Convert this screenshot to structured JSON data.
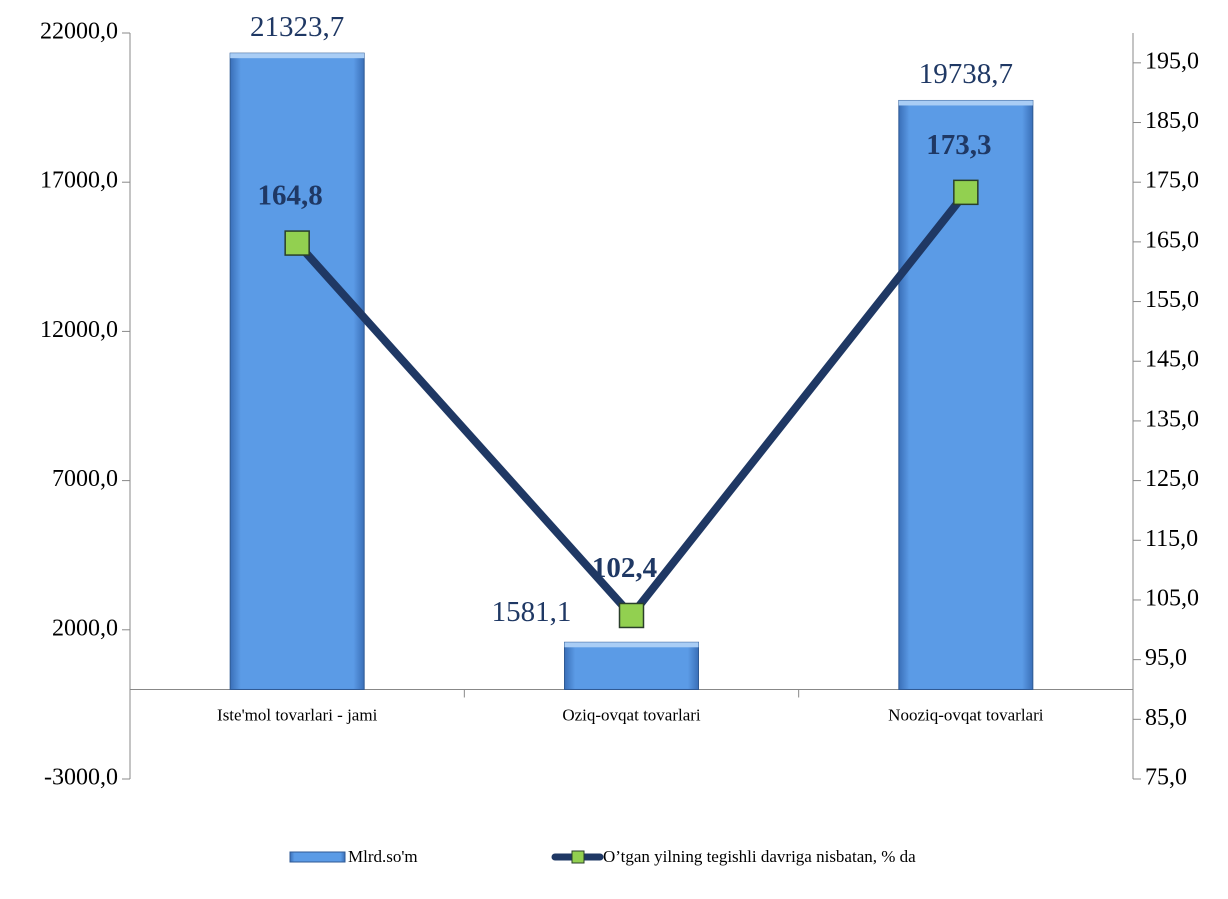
{
  "chart_data": {
    "type": "bar",
    "categories": [
      "Iste'mol tovarlari - jami",
      "Oziq-ovqat tovarlari",
      "Nooziq-ovqat tovarlari"
    ],
    "series": [
      {
        "name": "Mlrd.so'm",
        "type": "bar",
        "color": "#5b9be6",
        "values": [
          21323.7,
          1581.1,
          19738.7
        ],
        "value_labels": [
          "21323,7",
          "1581,1",
          "19738,7"
        ]
      },
      {
        "name": "O’tgan yilning tegishli davriga nisbatan, % da",
        "type": "line",
        "axis": "y2",
        "color": "#1f3864",
        "marker_color": "#92d050",
        "values": [
          164.8,
          102.4,
          173.3
        ],
        "value_labels": [
          "164,8",
          "102,4",
          "173,3"
        ]
      }
    ],
    "ylim": [
      -3000,
      22000
    ],
    "yticks": [
      {
        "value": -3000,
        "label": "-3000,0"
      },
      {
        "value": 2000,
        "label": "2000,0"
      },
      {
        "value": 7000,
        "label": "7000,0"
      },
      {
        "value": 12000,
        "label": "12000,0"
      },
      {
        "value": 17000,
        "label": "17000,0"
      },
      {
        "value": 22000,
        "label": "22000,0"
      }
    ],
    "y2lim": [
      75,
      200
    ],
    "y2ticks": [
      {
        "value": 75,
        "label": "75,0"
      },
      {
        "value": 85,
        "label": "85,0"
      },
      {
        "value": 95,
        "label": "95,0"
      },
      {
        "value": 105,
        "label": "105,0"
      },
      {
        "value": 115,
        "label": "115,0"
      },
      {
        "value": 125,
        "label": "125,0"
      },
      {
        "value": 135,
        "label": "135,0"
      },
      {
        "value": 145,
        "label": "145,0"
      },
      {
        "value": 155,
        "label": "155,0"
      },
      {
        "value": 165,
        "label": "165,0"
      },
      {
        "value": 175,
        "label": "175,0"
      },
      {
        "value": 185,
        "label": "185,0"
      },
      {
        "value": 195,
        "label": "195,0"
      }
    ],
    "legend": "bottom"
  }
}
